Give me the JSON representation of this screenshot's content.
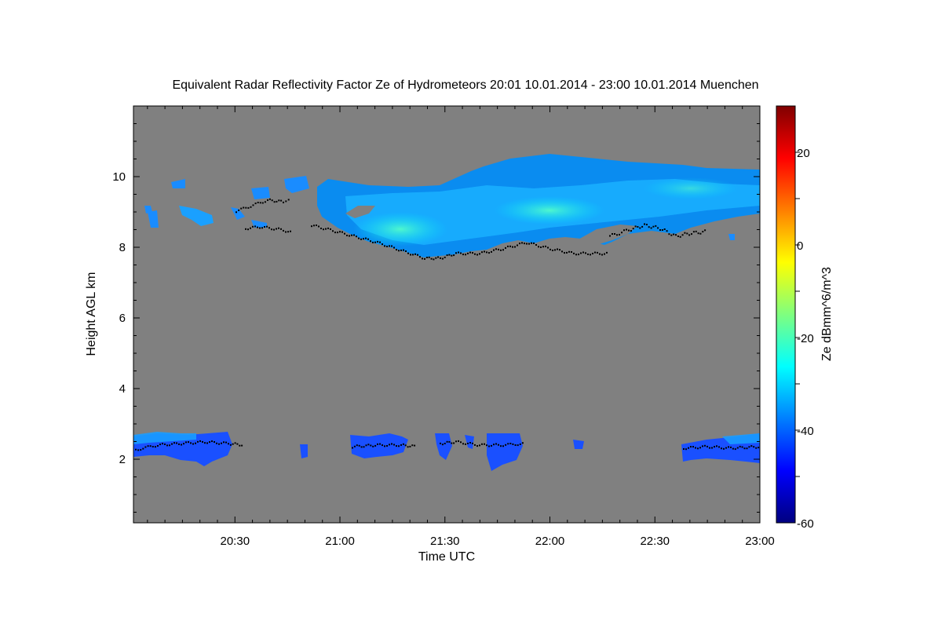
{
  "chart_data": {
    "type": "heatmap",
    "title": "Equivalent Radar Reflectivity Factor Ze of Hydrometeors   20:01 10.01.2014 - 23:00 10.01.2014 Muenchen",
    "xlabel": "Time UTC",
    "ylabel": "Height AGL km",
    "colorbar_label": "Ze dBmm^6/m^3",
    "x_range": [
      "20:01",
      "23:00"
    ],
    "ylim": [
      0.2,
      12.0
    ],
    "colorbar_range": [
      -60,
      30
    ],
    "x_ticks": [
      "20:30",
      "21:00",
      "21:30",
      "22:00",
      "22:30",
      "23:00"
    ],
    "y_ticks": [
      "2",
      "4",
      "6",
      "8",
      "10"
    ],
    "colorbar_ticks": [
      "-60",
      "-40",
      "-20",
      "0",
      "20"
    ],
    "background_color": "#808080",
    "cloud_base_color": "#000000",
    "colormap": [
      "#00007f",
      "#0000ff",
      "#007fff",
      "#00ffff",
      "#7fff7f",
      "#ffff00",
      "#ff7f00",
      "#ff0000",
      "#7f0000"
    ],
    "layers": [
      {
        "name": "upper",
        "time_start": "20:12",
        "time_end": "23:00",
        "base_km": [
          9.4,
          8.6,
          8.0,
          7.8,
          7.8,
          8.5,
          8.9
        ],
        "top_km": [
          10.1,
          9.9,
          9.7,
          10.3,
          10.6,
          10.3,
          10.2
        ],
        "ze_core_dbz": -32
      },
      {
        "name": "lower",
        "time_start": "20:01",
        "time_end": "23:00",
        "base_km": [
          1.8,
          2.0
        ],
        "top_km": [
          2.7,
          2.6
        ],
        "ze_core_dbz": -44
      }
    ]
  }
}
